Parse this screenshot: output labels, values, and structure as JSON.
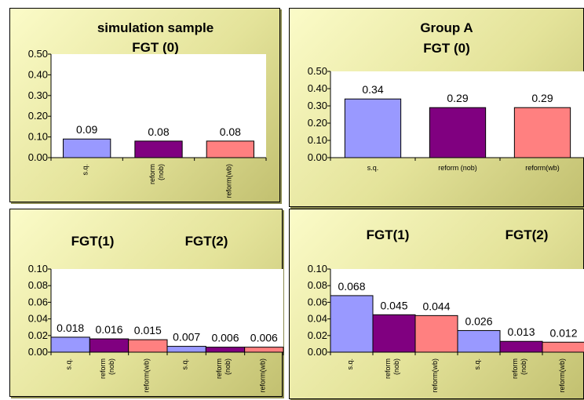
{
  "colors": {
    "sq": "#9999ff",
    "nob": "#800080",
    "wb": "#ff8080",
    "plot_bg": "#ffffff"
  },
  "chart_data": [
    {
      "type": "bar",
      "title": "simulation sample",
      "subtitle": "FGT (0)",
      "categories": [
        "s.q.",
        "reform (nob)",
        "reform(wb)"
      ],
      "values": [
        0.09,
        0.08,
        0.08
      ],
      "value_labels": [
        "0.09",
        "0.08",
        "0.08"
      ],
      "ylim": [
        0,
        0.5
      ],
      "yticks": [
        "0.00",
        "0.10",
        "0.20",
        "0.30",
        "0.40",
        "0.50"
      ],
      "legend": "none"
    },
    {
      "type": "bar",
      "title": "Group A",
      "subtitle": "FGT (0)",
      "categories": [
        "s.q.",
        "reform (nob)",
        "reform(wb)"
      ],
      "values": [
        0.34,
        0.29,
        0.29
      ],
      "value_labels": [
        "0.34",
        "0.29",
        "0.29"
      ],
      "ylim": [
        0,
        0.5
      ],
      "yticks": [
        "0.00",
        "0.10",
        "0.20",
        "0.30",
        "0.40",
        "0.50"
      ],
      "legend": "none"
    },
    {
      "type": "bar",
      "group_titles": [
        "FGT(1)",
        "FGT(2)"
      ],
      "categories": [
        "s.q.",
        "reform (nob)",
        "reform(wb)",
        "s.q.",
        "reform (nob)",
        "reform(wb)"
      ],
      "values": [
        0.018,
        0.016,
        0.015,
        0.007,
        0.006,
        0.006
      ],
      "value_labels": [
        "0.018",
        "0.016",
        "0.015",
        "0.007",
        "0.006",
        "0.006"
      ],
      "ylim": [
        0,
        0.1
      ],
      "yticks": [
        "0.00",
        "0.02",
        "0.04",
        "0.06",
        "0.08",
        "0.10"
      ],
      "legend": "none"
    },
    {
      "type": "bar",
      "group_titles": [
        "FGT(1)",
        "FGT(2)"
      ],
      "categories": [
        "s.q.",
        "reform (nob)",
        "reform(wb)",
        "s.q.",
        "reform (nob)",
        "reform(wb)"
      ],
      "values": [
        0.068,
        0.045,
        0.044,
        0.026,
        0.013,
        0.012
      ],
      "value_labels": [
        "0.068",
        "0.045",
        "0.044",
        "0.026",
        "0.013",
        "0.012"
      ],
      "ylim": [
        0,
        0.1
      ],
      "yticks": [
        "0.00",
        "0.02",
        "0.04",
        "0.06",
        "0.08",
        "0.10"
      ],
      "legend": "none"
    }
  ]
}
